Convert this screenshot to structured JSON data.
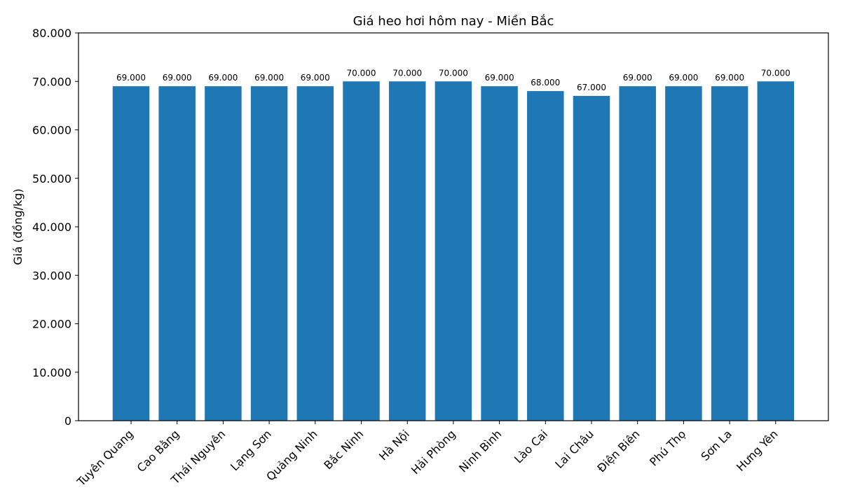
{
  "chart_data": {
    "type": "bar",
    "title": "Giá heo hơi hôm nay - Miền Bắc",
    "xlabel": "",
    "ylabel": "Giá (đồng/kg)",
    "ylim": [
      0,
      80000
    ],
    "yticks": [
      0,
      10000,
      20000,
      30000,
      40000,
      50000,
      60000,
      70000,
      80000
    ],
    "ytick_labels": [
      "0",
      "10.000",
      "20.000",
      "30.000",
      "40.000",
      "50.000",
      "60.000",
      "70.000",
      "80.000"
    ],
    "grid": false,
    "legend": null,
    "bar_color": "#1f77b4",
    "categories": [
      "Tuyên Quang",
      "Cao Bằng",
      "Thái Nguyên",
      "Lạng Sơn",
      "Quảng Ninh",
      "Bắc Ninh",
      "Hà Nội",
      "Hải Phòng",
      "Ninh Bình",
      "Lào Cai",
      "Lai Châu",
      "Điện Biên",
      "Phú Thọ",
      "Sơn La",
      "Hưng Yên"
    ],
    "values": [
      69000,
      69000,
      69000,
      69000,
      69000,
      70000,
      70000,
      70000,
      69000,
      68000,
      67000,
      69000,
      69000,
      69000,
      70000
    ],
    "value_labels": [
      "69.000",
      "69.000",
      "69.000",
      "69.000",
      "69.000",
      "70.000",
      "70.000",
      "70.000",
      "69.000",
      "68.000",
      "67.000",
      "69.000",
      "69.000",
      "69.000",
      "70.000"
    ]
  }
}
